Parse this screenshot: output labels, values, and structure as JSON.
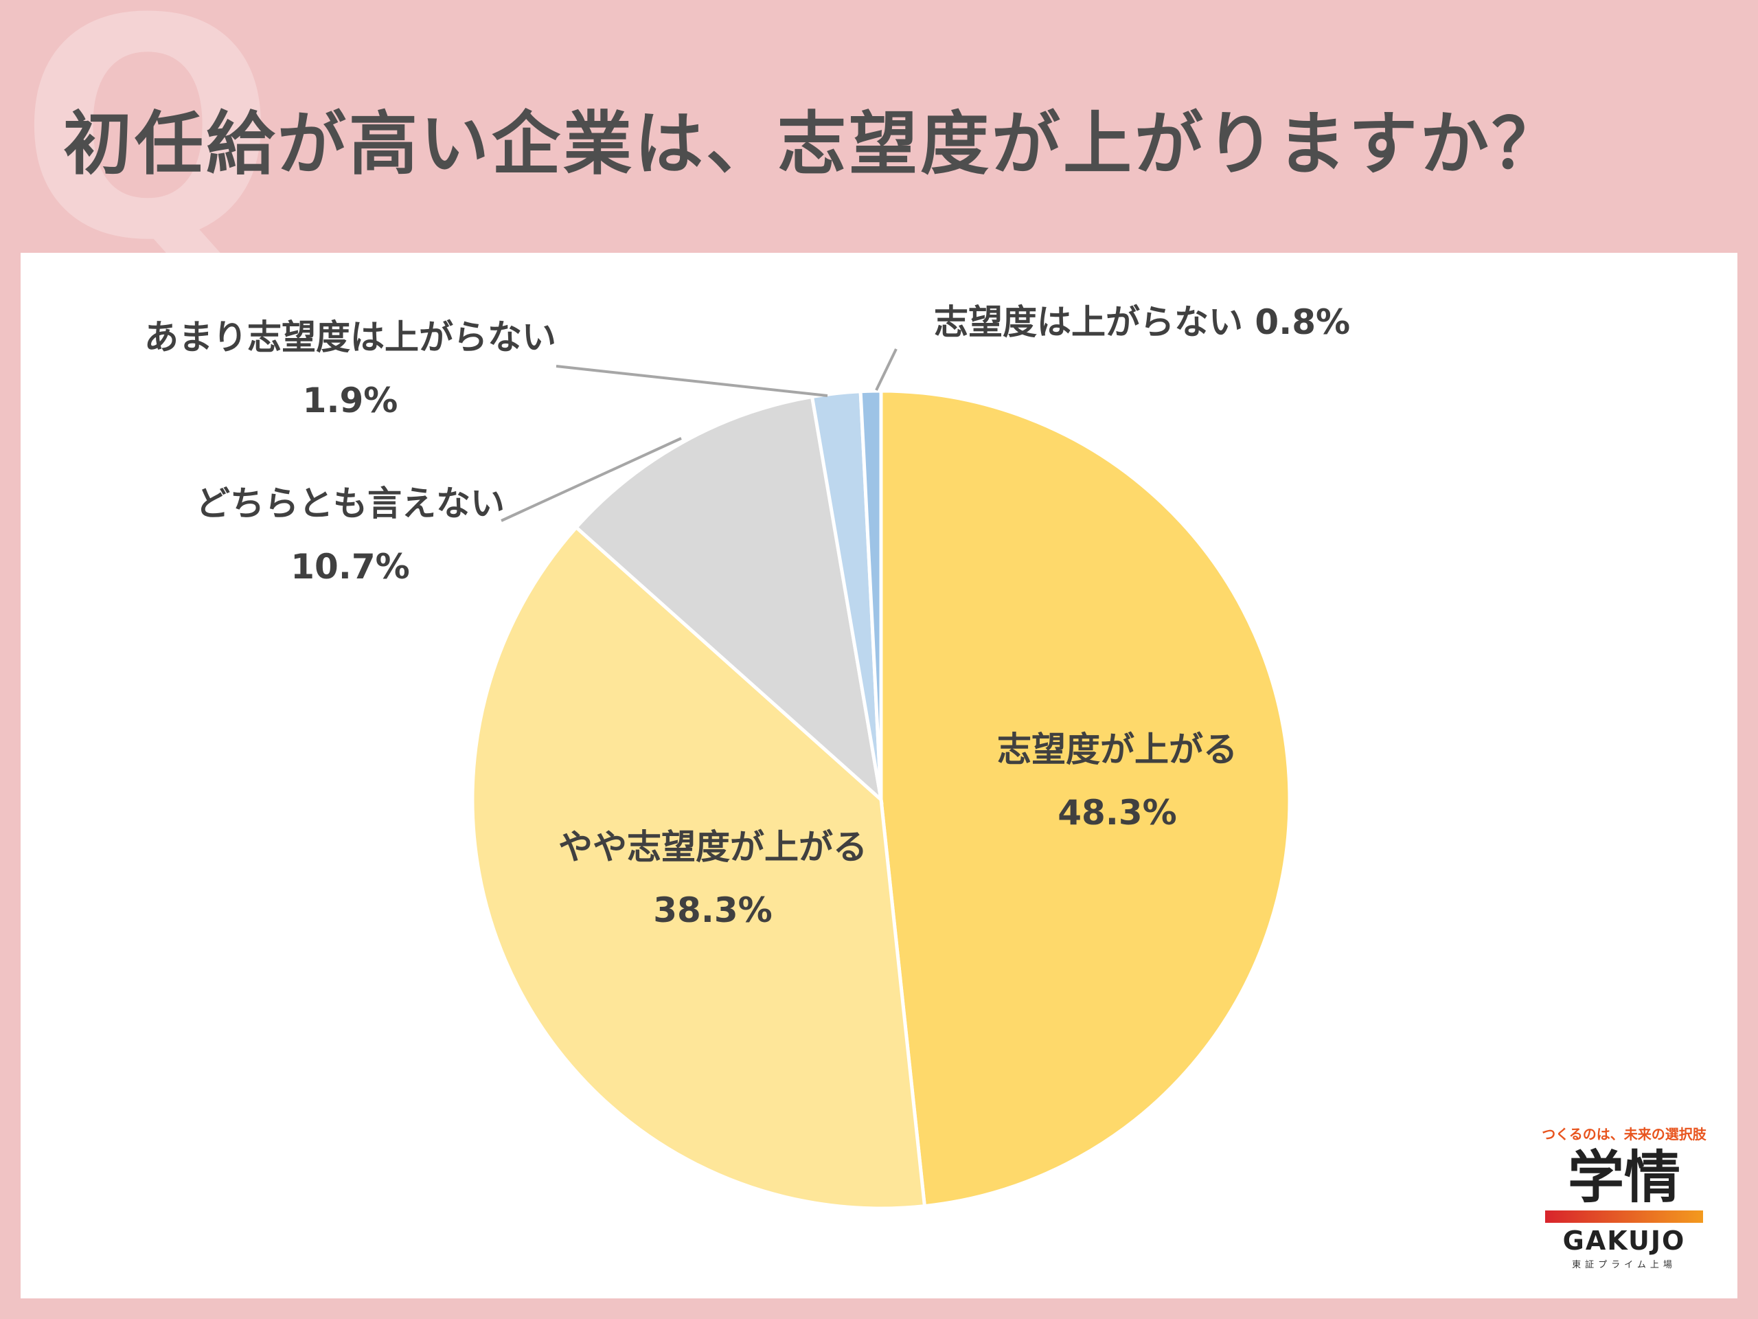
{
  "page": {
    "title": "初任給が高い企業は、志望度が上がりますか？",
    "q_mark": "Q"
  },
  "chart_data": {
    "type": "pie",
    "start_angle_deg": 0,
    "direction": "clockwise",
    "slices": [
      {
        "label": "志望度が上がる",
        "value": 48.3,
        "value_label": "48.3%",
        "color": "#fed96b"
      },
      {
        "label": "やや志望度が上がる",
        "value": 38.3,
        "value_label": "38.3%",
        "color": "#fee699"
      },
      {
        "label": "どちらとも言えない",
        "value": 10.7,
        "value_label": "10.7%",
        "color": "#d9d9d9"
      },
      {
        "label": "あまり志望度は上がらない",
        "value": 1.9,
        "value_label": "1.9%",
        "color": "#bdd7ee"
      },
      {
        "label": "志望度は上がらない",
        "value": 0.8,
        "value_label": "0.8%",
        "color": "#9dc3e6"
      }
    ]
  },
  "brand": {
    "tagline": "つくるのは、未来の選択肢",
    "name_jp": "学情",
    "name_en": "GAKUJO",
    "listing": "東証プライム上場"
  }
}
